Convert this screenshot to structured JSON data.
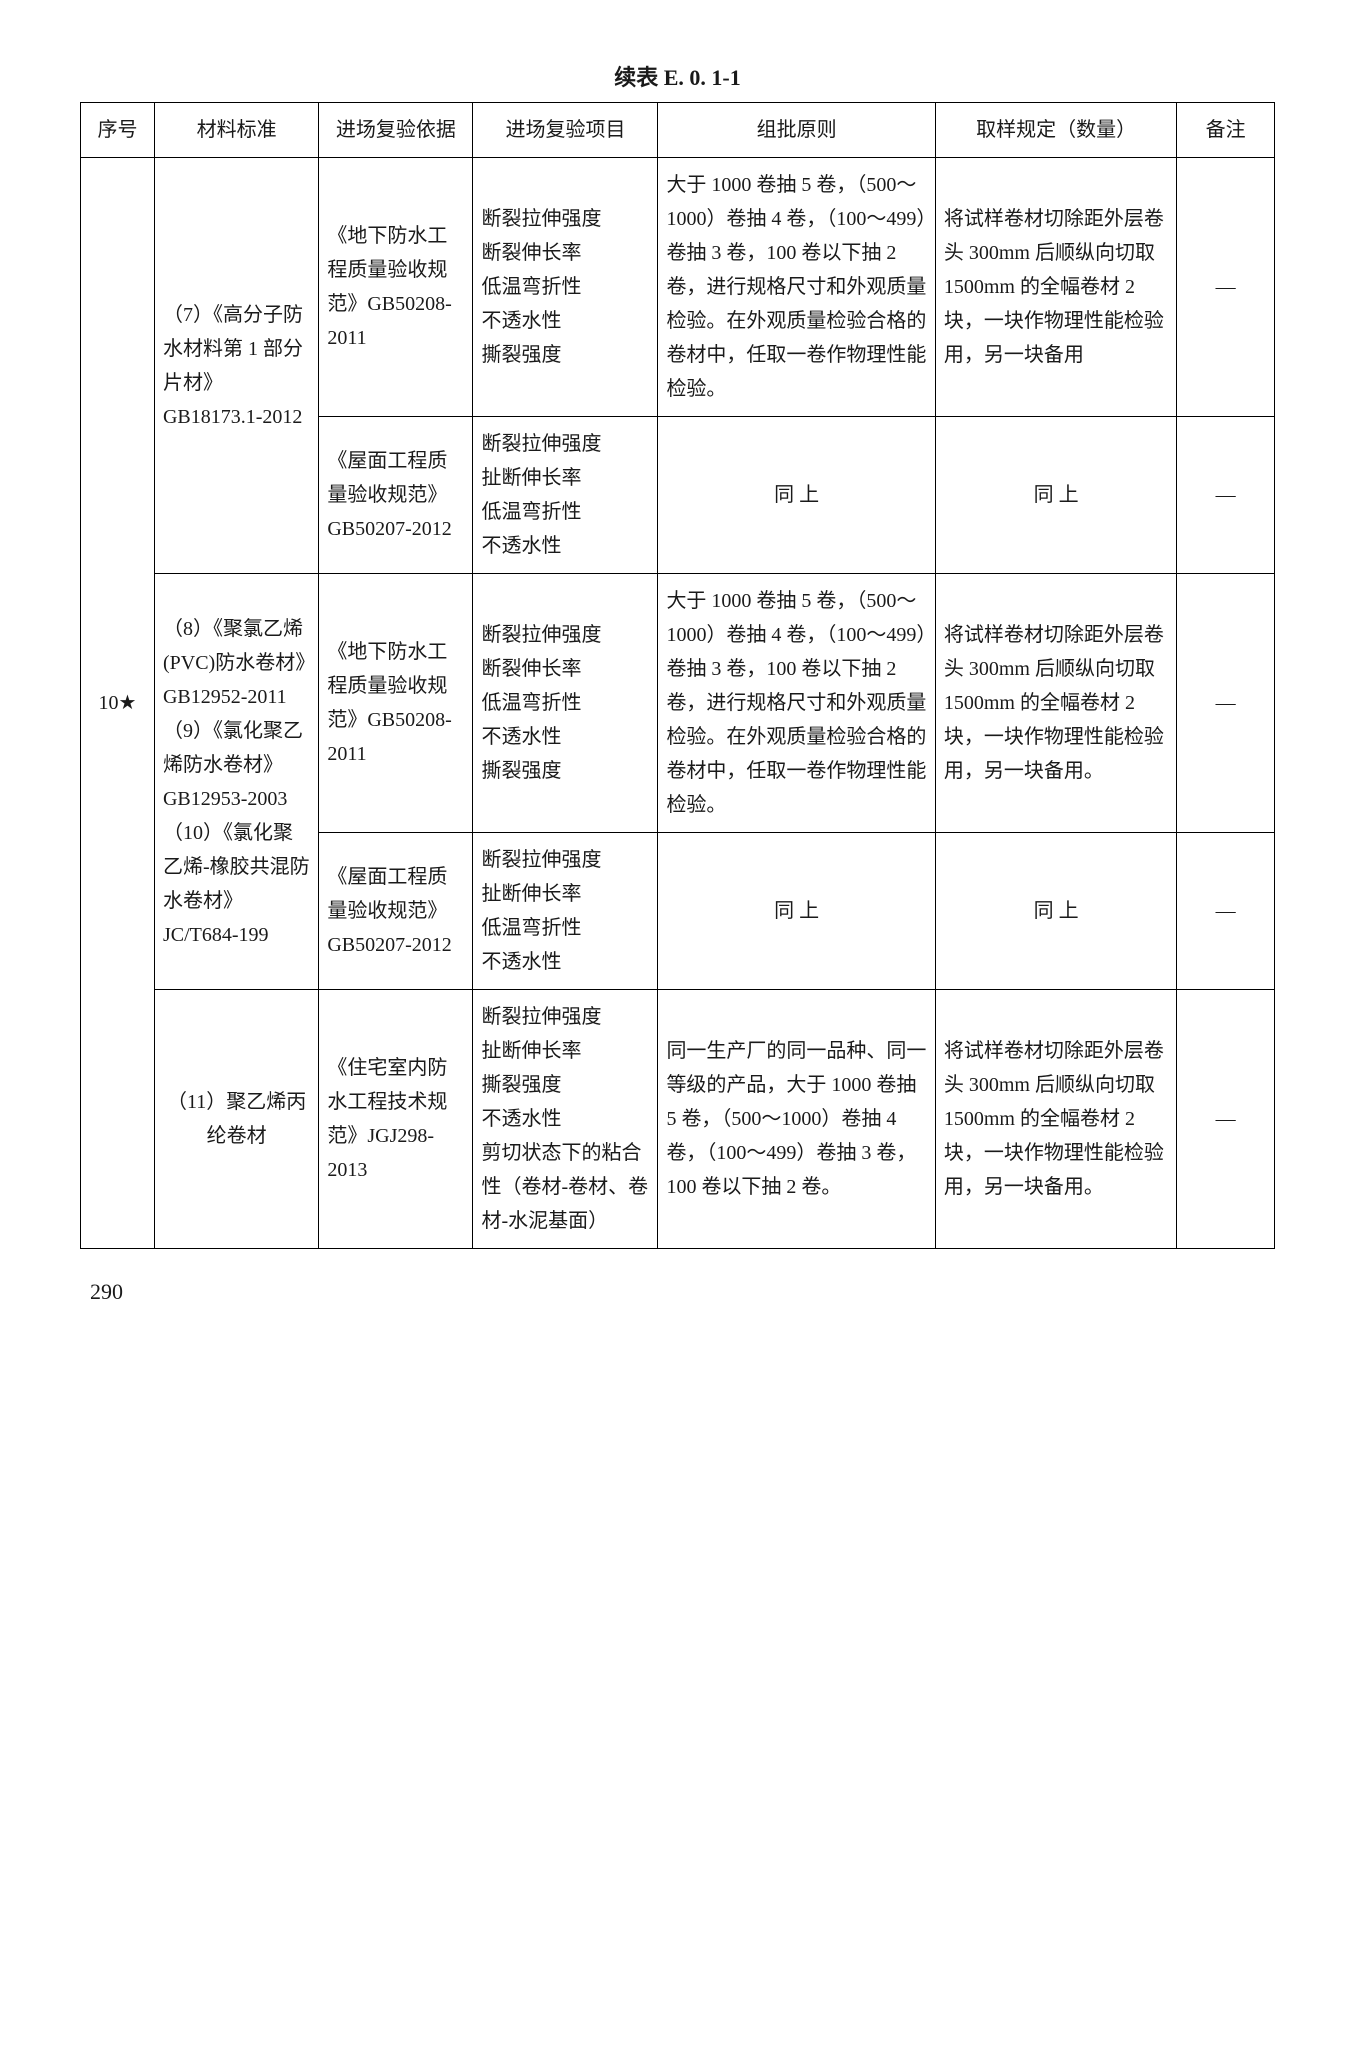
{
  "title": "续表 E. 0. 1-1",
  "page_number": "290",
  "headers": {
    "seq": "序号",
    "material": "材料标准",
    "basis": "进场复验依据",
    "item": "进场复验项目",
    "batch": "组批原则",
    "sample": "取样规定（数量）",
    "note": "备注"
  },
  "seq_label": "10★",
  "row1": {
    "material": "（7）《高分子防水材料第 1 部分片材》GB18173.1-2012",
    "basis": "《地下防水工程质量验收规范》GB50208-2011",
    "item": "断裂拉伸强度\n断裂伸长率\n低温弯折性\n不透水性\n撕裂强度",
    "batch": "大于 1000 卷抽 5 卷，（500～1000）卷抽 4 卷，（100～499）卷抽 3 卷，100 卷以下抽 2 卷，进行规格尺寸和外观质量检验。在外观质量检验合格的卷材中，任取一卷作物理性能检验。",
    "sample": "将试样卷材切除距外层卷头 300mm 后顺纵向切取 1500mm 的全幅卷材 2 块，一块作物理性能检验用，另一块备用",
    "note": "—"
  },
  "row2": {
    "basis": "《屋面工程质量验收规范》GB50207-2012",
    "item": "断裂拉伸强度\n扯断伸长率\n低温弯折性\n不透水性",
    "batch": "同 上",
    "sample": "同 上",
    "note": "—"
  },
  "row3": {
    "material": "（8）《聚氯乙烯(PVC)防水卷材》GB12952-2011\n（9）《氯化聚乙烯防水卷材》GB12953-2003\n（10）《氯化聚乙烯-橡胶共混防水卷材》JC/T684-199",
    "basis": "《地下防水工程质量验收规范》GB50208-2011",
    "item": "断裂拉伸强度\n断裂伸长率\n低温弯折性\n不透水性\n撕裂强度",
    "batch": "大于 1000 卷抽 5 卷，（500～1000）卷抽 4 卷，（100～499）卷抽 3 卷，100 卷以下抽 2 卷，进行规格尺寸和外观质量检验。在外观质量检验合格的卷材中，任取一卷作物理性能检验。",
    "sample": "将试样卷材切除距外层卷头 300mm 后顺纵向切取 1500mm 的全幅卷材 2 块，一块作物理性能检验用，另一块备用。",
    "note": "—"
  },
  "row4": {
    "basis": "《屋面工程质量验收规范》GB50207-2012",
    "item": "断裂拉伸强度\n扯断伸长率\n低温弯折性\n不透水性",
    "batch": "同 上",
    "sample": "同 上",
    "note": "—"
  },
  "row5": {
    "material": "（11）聚乙烯丙纶卷材",
    "basis": "《住宅室内防水工程技术规范》JGJ298-2013",
    "item": "断裂拉伸强度\n扯断伸长率\n撕裂强度\n不透水性\n剪切状态下的粘合性（卷材-卷材、卷材-水泥基面）",
    "batch": "同一生产厂的同一品种、同一等级的产品，大于 1000 卷抽 5 卷，（500～1000）卷抽 4 卷，（100～499）卷抽 3 卷，100 卷以下抽 2 卷。",
    "sample": "将试样卷材切除距外层卷头 300mm 后顺纵向切取 1500mm 的全幅卷材 2 块，一块作物理性能检验用，另一块备用。",
    "note": "—"
  }
}
